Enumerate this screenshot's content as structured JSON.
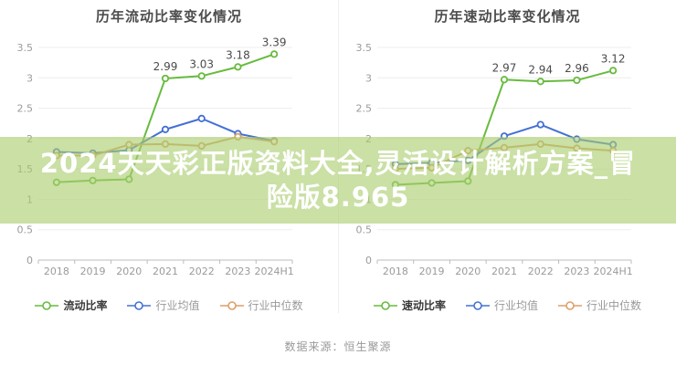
{
  "page": {
    "source": "数据来源：恒生聚源",
    "overlay": {
      "line1": "2024天天彩正版资料大全,灵活设计解析方案_冒",
      "line2": "险版8.965",
      "bg_color": "rgba(170,205,110,0.62)",
      "text_color": "#ffffff"
    }
  },
  "colors": {
    "title": "#4c4c4c",
    "axis_text": "#9b9b9b",
    "gridline": "#ededed",
    "axis_line": "#bcbcbc",
    "data_label": "#4a4a4a",
    "series_green": "#67bb3e",
    "series_blue": "#4470d4",
    "series_orange": "#dd9f68"
  },
  "chart_data": [
    {
      "type": "line",
      "title": "历年流动比率变化情况",
      "categories": [
        "2018",
        "2019",
        "2020",
        "2021",
        "2022",
        "2023",
        "2024H1"
      ],
      "series": [
        {
          "name": "流动比率",
          "color": "#67bb3e",
          "values": [
            1.28,
            1.31,
            1.33,
            2.99,
            3.03,
            3.18,
            3.39
          ],
          "labels": [
            "",
            "",
            "",
            "2.99",
            "3.03",
            "3.18",
            "3.39"
          ],
          "legend_active": true
        },
        {
          "name": "行业均值",
          "color": "#4470d4",
          "values": [
            1.78,
            1.76,
            1.81,
            2.15,
            2.33,
            2.08,
            1.96
          ],
          "labels": null,
          "legend_active": false
        },
        {
          "name": "行业中位数",
          "color": "#dd9f68",
          "values": [
            1.72,
            1.72,
            1.9,
            1.91,
            1.88,
            2.03,
            1.95
          ],
          "labels": null,
          "legend_active": false
        }
      ],
      "ylim": [
        0,
        3.5
      ],
      "ytick_step": 0.5,
      "ytick_labels": [
        "0",
        "0.5",
        "1",
        "1.5",
        "2",
        "2.5",
        "3",
        "3.5"
      ],
      "grid": true,
      "legend_position": "bottom"
    },
    {
      "type": "line",
      "title": "历年速动比率变化情况",
      "categories": [
        "2018",
        "2019",
        "2020",
        "2021",
        "2022",
        "2023",
        "2024H1"
      ],
      "series": [
        {
          "name": "速动比率",
          "color": "#67bb3e",
          "values": [
            1.24,
            1.27,
            1.3,
            2.97,
            2.94,
            2.96,
            3.12
          ],
          "labels": [
            "",
            "",
            "",
            "2.97",
            "2.94",
            "2.96",
            "3.12"
          ],
          "legend_active": true
        },
        {
          "name": "行业均值",
          "color": "#4470d4",
          "values": [
            1.58,
            1.6,
            1.64,
            2.04,
            2.23,
            1.99,
            1.9
          ],
          "labels": null,
          "legend_active": false
        },
        {
          "name": "行业中位数",
          "color": "#dd9f68",
          "values": [
            1.5,
            1.52,
            1.8,
            1.85,
            1.91,
            1.84,
            1.8
          ],
          "labels": null,
          "legend_active": false
        }
      ],
      "ylim": [
        0,
        3.5
      ],
      "ytick_step": 0.5,
      "ytick_labels": [
        "0",
        "0.5",
        "1",
        "1.5",
        "2",
        "2.5",
        "3",
        "3.5"
      ],
      "grid": true,
      "legend_position": "bottom"
    }
  ]
}
